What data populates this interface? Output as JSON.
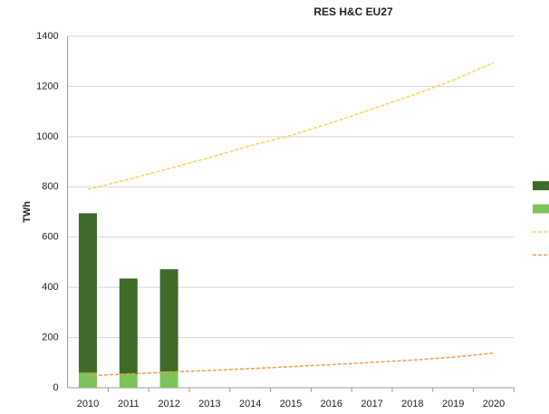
{
  "chart_data": {
    "type": "bar",
    "title": "RES H&C EU27",
    "y_label": "TWh",
    "stacked": true,
    "categories": [
      "2010",
      "2011",
      "2012",
      "2013",
      "2014",
      "2015",
      "2016",
      "2017",
      "2018",
      "2019",
      "2020"
    ],
    "series": [
      {
        "type": "bar",
        "color": "#3f6b2a",
        "values": [
          635,
          380,
          407,
          null,
          null,
          null,
          null,
          null,
          null,
          null,
          null
        ]
      },
      {
        "type": "bar",
        "color": "#7cc35a",
        "values": [
          60,
          55,
          65,
          null,
          null,
          null,
          null,
          null,
          null,
          null,
          null
        ]
      },
      {
        "type": "line",
        "color": "#f7d154",
        "dashed": true,
        "values": [
          790,
          830,
          873,
          917,
          964,
          1005,
          1055,
          1110,
          1165,
          1225,
          1295
        ]
      },
      {
        "type": "line",
        "color": "#f29a4a",
        "dashed": true,
        "values": [
          48,
          55,
          62,
          69,
          76,
          84,
          92,
          101,
          110,
          122,
          138
        ]
      }
    ],
    "ylim": [
      0,
      1400
    ],
    "yticks": [
      0,
      200,
      400,
      600,
      800,
      1000,
      1200,
      1400
    ],
    "grid": true,
    "legend": "right"
  }
}
